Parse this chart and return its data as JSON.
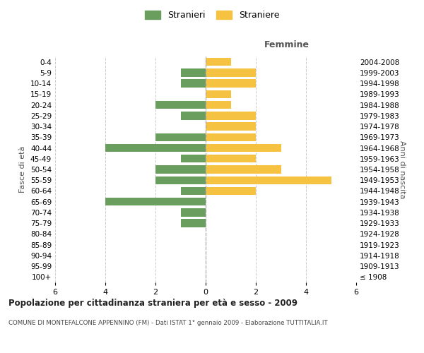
{
  "age_groups": [
    "100+",
    "95-99",
    "90-94",
    "85-89",
    "80-84",
    "75-79",
    "70-74",
    "65-69",
    "60-64",
    "55-59",
    "50-54",
    "45-49",
    "40-44",
    "35-39",
    "30-34",
    "25-29",
    "20-24",
    "15-19",
    "10-14",
    "5-9",
    "0-4"
  ],
  "birth_years": [
    "≤ 1908",
    "1909-1913",
    "1914-1918",
    "1919-1923",
    "1924-1928",
    "1929-1933",
    "1934-1938",
    "1939-1943",
    "1944-1948",
    "1949-1953",
    "1954-1958",
    "1959-1963",
    "1964-1968",
    "1969-1973",
    "1974-1978",
    "1979-1983",
    "1984-1988",
    "1989-1993",
    "1994-1998",
    "1999-2003",
    "2004-2008"
  ],
  "males": [
    0,
    0,
    0,
    0,
    0,
    1,
    1,
    4,
    1,
    2,
    2,
    1,
    4,
    2,
    0,
    1,
    2,
    0,
    1,
    1,
    0
  ],
  "females": [
    0,
    0,
    0,
    0,
    0,
    0,
    0,
    0,
    2,
    5,
    3,
    2,
    3,
    2,
    2,
    2,
    1,
    1,
    2,
    2,
    1
  ],
  "male_color": "#6a9e5f",
  "female_color": "#f5c242",
  "title": "Popolazione per cittadinanza straniera per età e sesso - 2009",
  "subtitle": "COMUNE DI MONTEFALCONE APPENNINO (FM) - Dati ISTAT 1° gennaio 2009 - Elaborazione TUTTITALIA.IT",
  "xlabel_right": "Femmine",
  "ylabel_left": "Fasce di età",
  "ylabel_right": "Anni di nascita",
  "legend_male": "Stranieri",
  "legend_female": "Straniere",
  "xlim": 6,
  "background_color": "#ffffff",
  "grid_color": "#cccccc",
  "bar_height": 0.75
}
